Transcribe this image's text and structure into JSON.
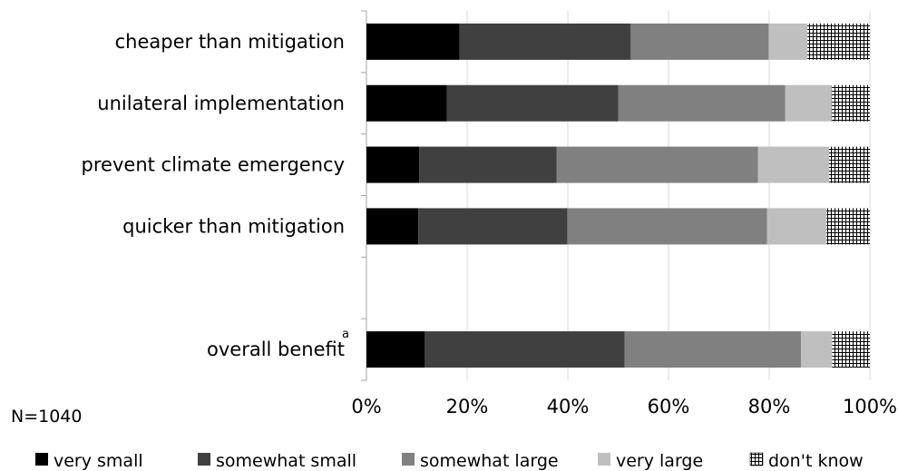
{
  "chart_data": {
    "type": "bar",
    "orientation": "horizontal",
    "stacked": true,
    "categories": [
      "cheaper than mitigation",
      "unilateral implementation",
      "prevent climate emergency",
      "quicker than mitigation",
      "",
      "overall benefit"
    ],
    "category_superscripts": [
      "",
      "",
      "",
      "",
      "",
      "a"
    ],
    "series": [
      {
        "name": "very small",
        "values": [
          18.5,
          16,
          10.5,
          10.3,
          null,
          11.6
        ]
      },
      {
        "name": "somewhat small",
        "values": [
          34,
          34,
          27.3,
          29.6,
          null,
          39.7
        ]
      },
      {
        "name": "somewhat large",
        "values": [
          27.4,
          33.2,
          40,
          39.7,
          null,
          35
        ]
      },
      {
        "name": "very large",
        "values": [
          7.7,
          9.2,
          14.1,
          11.8,
          null,
          6.2
        ]
      },
      {
        "name": "don't know",
        "values": [
          12.4,
          7.6,
          8.1,
          8.6,
          null,
          7.5
        ]
      }
    ],
    "series_colors": [
      "#000000",
      "#404040",
      "#808080",
      "#bfbfbf",
      "hatch"
    ],
    "x_tick_labels": [
      "0%",
      "20%",
      "40%",
      "60%",
      "80%",
      "100%"
    ],
    "xlim": [
      0,
      100
    ],
    "grid": true,
    "legend_position": "bottom",
    "note": "N=1040"
  }
}
